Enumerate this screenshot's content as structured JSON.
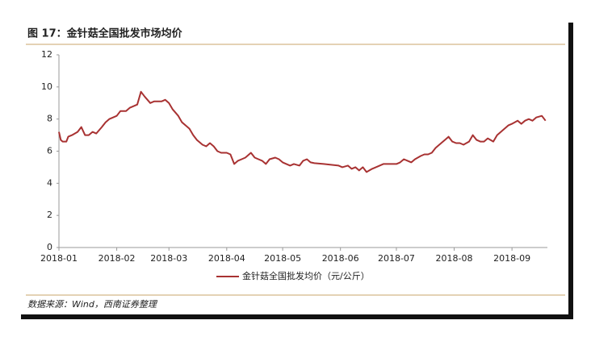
{
  "chart_data": {
    "type": "line",
    "title": "图 17：金针菇全国批发市场均价",
    "source": "数据来源：Wind，西南证券整理",
    "x": [
      0,
      1,
      2,
      4,
      5,
      7,
      10,
      12,
      14,
      16,
      18,
      20,
      23,
      25,
      27,
      29,
      31,
      33,
      36,
      38,
      40,
      42,
      44,
      46,
      49,
      51,
      53,
      55,
      57,
      59,
      61,
      64,
      66,
      68,
      70,
      72,
      74,
      77,
      79,
      81,
      83,
      85,
      87,
      90,
      92,
      94,
      96,
      98,
      100,
      103,
      105,
      107,
      109,
      111,
      113,
      116,
      118,
      120,
      122,
      124,
      126,
      129,
      131,
      133,
      135,
      137,
      142,
      146,
      150,
      152,
      155,
      157,
      159,
      161,
      163,
      165,
      168,
      170,
      172,
      174,
      176,
      178,
      181,
      183,
      185,
      187,
      189,
      191,
      194,
      196,
      198,
      200,
      202,
      204,
      207,
      209,
      211,
      213,
      215,
      217,
      220,
      222,
      224,
      226,
      228,
      230,
      233,
      235,
      237,
      239,
      241,
      243,
      246,
      248,
      250,
      252,
      254,
      256,
      259,
      261
    ],
    "series": [
      {
        "name": "金针菇全国批发均价（元/公斤）",
        "color": "#a83232",
        "values": [
          7.2,
          6.7,
          6.6,
          6.6,
          6.9,
          7.0,
          7.2,
          7.5,
          7.0,
          7.0,
          7.2,
          7.1,
          7.5,
          7.8,
          8.0,
          8.1,
          8.2,
          8.5,
          8.5,
          8.7,
          8.8,
          8.9,
          9.7,
          9.4,
          9.0,
          9.1,
          9.1,
          9.1,
          9.2,
          9.0,
          8.6,
          8.2,
          7.8,
          7.6,
          7.4,
          7.0,
          6.7,
          6.4,
          6.3,
          6.5,
          6.3,
          6.0,
          5.9,
          5.9,
          5.8,
          5.2,
          5.4,
          5.5,
          5.6,
          5.9,
          5.6,
          5.5,
          5.4,
          5.2,
          5.5,
          5.6,
          5.5,
          5.3,
          5.2,
          5.1,
          5.2,
          5.1,
          5.4,
          5.5,
          5.3,
          5.25,
          5.2,
          5.15,
          5.1,
          5.0,
          5.1,
          4.9,
          5.0,
          4.8,
          5.0,
          4.7,
          4.9,
          5.0,
          5.1,
          5.2,
          5.2,
          5.2,
          5.2,
          5.3,
          5.5,
          5.4,
          5.3,
          5.5,
          5.7,
          5.8,
          5.8,
          5.9,
          6.2,
          6.4,
          6.7,
          6.9,
          6.6,
          6.5,
          6.5,
          6.4,
          6.6,
          7.0,
          6.7,
          6.6,
          6.6,
          6.8,
          6.6,
          7.0,
          7.2,
          7.4,
          7.6,
          7.7,
          7.9,
          7.7,
          7.9,
          8.0,
          7.9,
          8.1,
          8.2,
          7.9
        ]
      }
    ],
    "xlim": [
      0,
      262
    ],
    "xticks": [
      {
        "value": 0,
        "label": "2018-01"
      },
      {
        "value": 31,
        "label": "2018-02"
      },
      {
        "value": 59,
        "label": "2018-03"
      },
      {
        "value": 90,
        "label": "2018-04"
      },
      {
        "value": 120,
        "label": "2018-05"
      },
      {
        "value": 151,
        "label": "2018-06"
      },
      {
        "value": 181,
        "label": "2018-07"
      },
      {
        "value": 212,
        "label": "2018-08"
      },
      {
        "value": 243,
        "label": "2018-09"
      }
    ],
    "ylim": [
      0,
      12
    ],
    "yticks": [
      0,
      2,
      4,
      6,
      8,
      10,
      12
    ],
    "grid": false
  }
}
